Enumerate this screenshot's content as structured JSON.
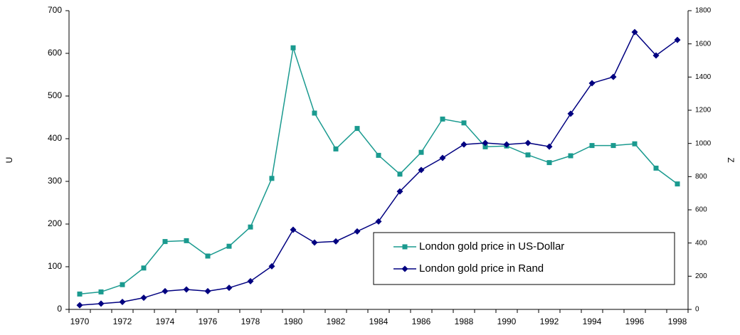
{
  "chart_data": {
    "type": "line",
    "categories": [
      "1970",
      null,
      "1972",
      null,
      "1974",
      null,
      "1976",
      null,
      "1978",
      null,
      "1980",
      null,
      "1982",
      null,
      "1984",
      null,
      "1986",
      null,
      "1988",
      null,
      "1990",
      null,
      "1992",
      null,
      "1994",
      null,
      "1996",
      null,
      "1998"
    ],
    "series": [
      {
        "name": "London gold price in US-Dollar",
        "color": "#1a9a8f",
        "marker": "square",
        "values": [
          36,
          41,
          58,
          97,
          159,
          161,
          125,
          148,
          193,
          307,
          613,
          460,
          376,
          424,
          361,
          317,
          368,
          446,
          437,
          381,
          383,
          362,
          344,
          360,
          384,
          384,
          388,
          331,
          294
        ]
      },
      {
        "name": "London gold price in Rand",
        "color": "#000080",
        "marker": "diamond",
        "axis": "y2",
        "values": [
          25,
          35,
          45,
          70,
          110,
          120,
          110,
          130,
          170,
          260,
          480,
          403,
          410,
          470,
          530,
          711,
          840,
          913,
          994,
          1003,
          994,
          1003,
          981,
          1179,
          1363,
          1401,
          1671,
          1530,
          1624
        ]
      }
    ],
    "ylabel": "U",
    "y2label": "Z",
    "ylim": [
      0,
      700
    ],
    "yticks": [
      0,
      100,
      200,
      300,
      400,
      500,
      600,
      700
    ],
    "y2lim": [
      0,
      1800
    ],
    "y2ticks": [
      0,
      200,
      400,
      600,
      800,
      1000,
      1200,
      1400,
      1600,
      1800
    ],
    "legend": "lower right",
    "grid": false
  }
}
